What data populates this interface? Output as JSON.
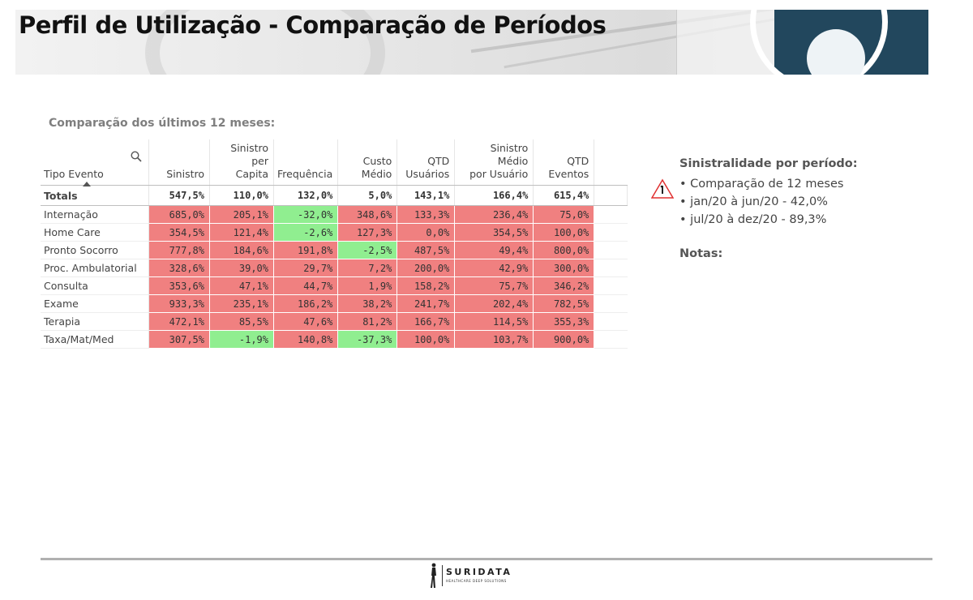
{
  "page": {
    "title": "Perfil de Utilização - Comparação de Períodos"
  },
  "section": {
    "title": "Comparação dos últimos 12 meses:"
  },
  "table": {
    "headers": {
      "tipo": "Tipo Evento",
      "sinistro": "Sinistro",
      "capita_1": "Sinistro per",
      "capita_2": "Capita",
      "frequencia": "Frequência",
      "custo_1": "Custo",
      "custo_2": "Médio",
      "qtd_usu_1": "QTD",
      "qtd_usu_2": "Usuários",
      "medio_usu_1": "Sinistro Médio",
      "medio_usu_2": "por Usuário",
      "qtd_ev_1": "QTD",
      "qtd_ev_2": "Eventos"
    },
    "totals": [
      "Totals",
      "547,5%",
      "110,0%",
      "132,0%",
      "5,0%",
      "143,1%",
      "166,4%",
      "615,4%"
    ],
    "rows": [
      [
        "Internação",
        "685,0%",
        "205,1%",
        "-32,0%",
        "348,6%",
        "133,3%",
        "236,4%",
        "75,0%"
      ],
      [
        "Home Care",
        "354,5%",
        "121,4%",
        "-2,6%",
        "127,3%",
        "0,0%",
        "354,5%",
        "100,0%"
      ],
      [
        "Pronto Socorro",
        "777,8%",
        "184,6%",
        "191,8%",
        "-2,5%",
        "487,5%",
        "49,4%",
        "800,0%"
      ],
      [
        "Proc. Ambulatorial",
        "328,6%",
        "39,0%",
        "29,7%",
        "7,2%",
        "200,0%",
        "42,9%",
        "300,0%"
      ],
      [
        "Consulta",
        "353,6%",
        "47,1%",
        "44,7%",
        "1,9%",
        "158,2%",
        "75,7%",
        "346,2%"
      ],
      [
        "Exame",
        "933,3%",
        "235,1%",
        "186,2%",
        "38,2%",
        "241,7%",
        "202,4%",
        "782,5%"
      ],
      [
        "Terapia",
        "472,1%",
        "85,5%",
        "47,6%",
        "81,2%",
        "166,7%",
        "114,5%",
        "355,3%"
      ],
      [
        "Taxa/Mat/Med",
        "307,5%",
        "-1,9%",
        "140,8%",
        "-37,3%",
        "100,0%",
        "103,7%",
        "900,0%"
      ]
    ],
    "colors": {
      "positive": "#f08080",
      "negative": "#90ee90"
    }
  },
  "side": {
    "heading": "Sinistralidade por período:",
    "items": [
      "• Comparação de 12 meses",
      "• jan/20 à jun/20 - 42,0%",
      "• jul/20 à dez/20 - 89,3%"
    ],
    "notes": "Notas:"
  },
  "footer": {
    "brand": "SURIDATA",
    "tagline": "HEALTHCARE DEEP SOLUTIONS"
  },
  "icons": [
    "search-icon",
    "sort-asc-icon",
    "warning-icon",
    "logo-figure-icon"
  ]
}
